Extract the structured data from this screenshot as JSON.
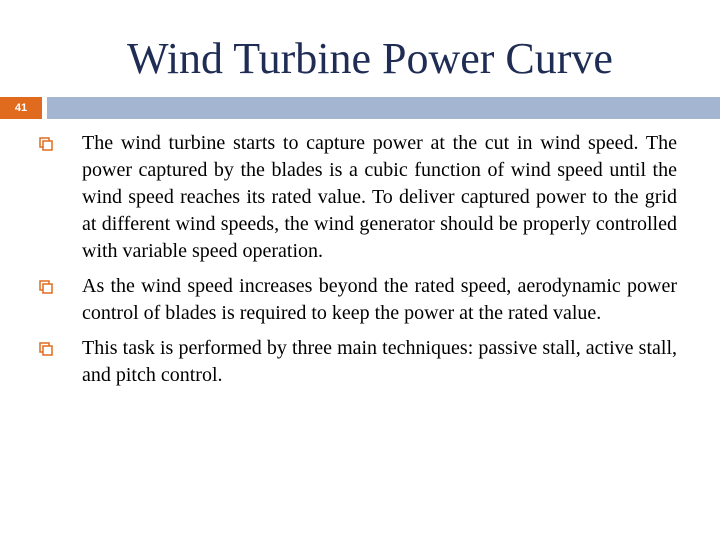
{
  "slide": {
    "title": "Wind Turbine Power Curve",
    "page_number": "41",
    "colors": {
      "title": "#1f2d55",
      "number_box": "#e06b1f",
      "header_bar": "#a3b5d0",
      "bullet_marker": "#e06b1f"
    },
    "bullet_icon": "square-bullet-icon",
    "bullets": [
      {
        "text": "The wind turbine starts to capture power at the cut in wind speed. The power captured by the blades is a cubic function of wind speed until the wind speed reaches its rated value. To deliver captured power to the grid at different wind speeds, the wind generator should be properly controlled with variable speed operation."
      },
      {
        "text": "As the wind speed increases beyond the rated speed, aerodynamic power control of blades is required to keep the power at the rated value."
      },
      {
        "text": "This task is performed by three main techniques: passive stall, active stall, and pitch control."
      }
    ]
  }
}
